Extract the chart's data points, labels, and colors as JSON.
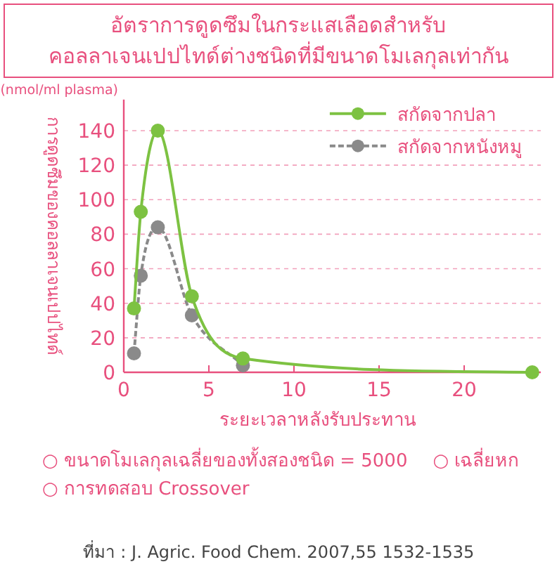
{
  "chart_data": {
    "type": "line",
    "title": "อัตราการดูดซึมในกระแสเลือดสำหรับ\nคอลลาเจนเปปไทด์ต่างชนิดที่มีขนาดโมเลกุลเท่ากัน",
    "xlabel": "ระยะเวลาหลังรับประทาน",
    "ylabel": "การดูดซึมของคอลลาเจนเปปไทด์",
    "xlim": [
      0,
      24.5
    ],
    "xticks": [
      0,
      5,
      10,
      15,
      20
    ],
    "ylim": [
      0,
      158
    ],
    "yticks": [
      0,
      20,
      40,
      60,
      80,
      100,
      120,
      140
    ],
    "grid": "y",
    "legend": "top right",
    "marker": "circle",
    "series": [
      {
        "name": "สกัดจากปลา",
        "color": "#7dc242",
        "line_style": "solid",
        "x": [
          0.6,
          1.0,
          2.0,
          4.0,
          7.0,
          24.0
        ],
        "values": [
          37,
          93,
          140,
          44,
          8,
          0
        ]
      },
      {
        "name": "สกัดจากหนังหมู",
        "color": "#8a8a8a",
        "line_style": "dashed",
        "x": [
          0.6,
          1.0,
          2.0,
          4.0,
          7.0
        ],
        "values": [
          11,
          56,
          84,
          33,
          4
        ]
      }
    ],
    "annotations": [
      "(nmol/ml plasma)",
      "○ ขนาดโมเลกุลเฉลี่ยของทั้งสองชนิด = 5000",
      "○ เฉลี่ยหก",
      "○ การทดสอบ Crossover",
      "ที่มา : J. Agric. Food Chem. 2007,55 1532-1535"
    ]
  }
}
